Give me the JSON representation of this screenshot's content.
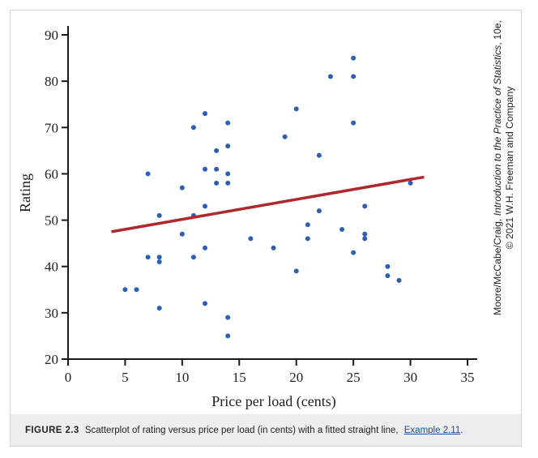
{
  "chart_data": {
    "type": "scatter",
    "xlabel": "Price per load (cents)",
    "ylabel": "Rating",
    "xlim": [
      0,
      35
    ],
    "ylim": [
      20,
      90
    ],
    "xticks": [
      0,
      5,
      10,
      15,
      20,
      25,
      30,
      35
    ],
    "yticks": [
      20,
      30,
      40,
      50,
      60,
      70,
      80,
      90
    ],
    "grid": false,
    "marker_color": "#2f5fb3",
    "line_color": "#b0272d",
    "points": [
      {
        "x": 5,
        "y": 35
      },
      {
        "x": 6,
        "y": 35
      },
      {
        "x": 7,
        "y": 60
      },
      {
        "x": 7,
        "y": 42
      },
      {
        "x": 8,
        "y": 51
      },
      {
        "x": 8,
        "y": 42
      },
      {
        "x": 8,
        "y": 41
      },
      {
        "x": 8,
        "y": 31
      },
      {
        "x": 10,
        "y": 57
      },
      {
        "x": 10,
        "y": 47
      },
      {
        "x": 11,
        "y": 70
      },
      {
        "x": 11,
        "y": 51
      },
      {
        "x": 11,
        "y": 42
      },
      {
        "x": 12,
        "y": 73
      },
      {
        "x": 12,
        "y": 61
      },
      {
        "x": 12,
        "y": 53
      },
      {
        "x": 12,
        "y": 44
      },
      {
        "x": 12,
        "y": 32
      },
      {
        "x": 13,
        "y": 65
      },
      {
        "x": 13,
        "y": 61
      },
      {
        "x": 13,
        "y": 58
      },
      {
        "x": 14,
        "y": 71
      },
      {
        "x": 14,
        "y": 66
      },
      {
        "x": 14,
        "y": 60
      },
      {
        "x": 14,
        "y": 58
      },
      {
        "x": 14,
        "y": 29
      },
      {
        "x": 14,
        "y": 25
      },
      {
        "x": 16,
        "y": 46
      },
      {
        "x": 18,
        "y": 44
      },
      {
        "x": 19,
        "y": 68
      },
      {
        "x": 20,
        "y": 74
      },
      {
        "x": 20,
        "y": 39
      },
      {
        "x": 21,
        "y": 49
      },
      {
        "x": 21,
        "y": 46
      },
      {
        "x": 22,
        "y": 64
      },
      {
        "x": 22,
        "y": 52
      },
      {
        "x": 23,
        "y": 81
      },
      {
        "x": 24,
        "y": 48
      },
      {
        "x": 25,
        "y": 85
      },
      {
        "x": 25,
        "y": 81
      },
      {
        "x": 25,
        "y": 71
      },
      {
        "x": 25,
        "y": 43
      },
      {
        "x": 26,
        "y": 53
      },
      {
        "x": 26,
        "y": 47
      },
      {
        "x": 26,
        "y": 46
      },
      {
        "x": 28,
        "y": 40
      },
      {
        "x": 28,
        "y": 38
      },
      {
        "x": 29,
        "y": 37
      },
      {
        "x": 30,
        "y": 58
      }
    ],
    "fit_line": {
      "x1": 3.8,
      "y1": 47.5,
      "x2": 31.2,
      "y2": 59.3
    }
  },
  "caption": {
    "label": "FIGURE 2.3",
    "text": "Scatterplot of rating versus price per load (in cents) with a fitted straight line,",
    "link": "Example 2.11",
    "end": "."
  },
  "credit": {
    "line1_prefix": "Moore/McCabe/Craig, ",
    "line1_title": "Introduction to the Practice of Statistics",
    "line1_suffix": ", 10e,",
    "line2": "© 2021 W.H. Freeman and Company"
  }
}
